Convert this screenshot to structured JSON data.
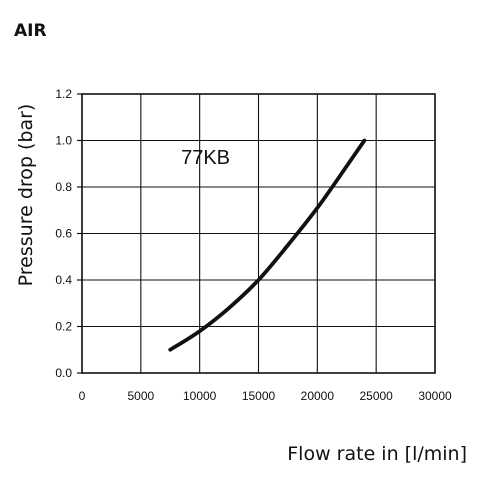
{
  "header": {
    "title": "AIR"
  },
  "chart_data": {
    "type": "line",
    "title": "",
    "xlabel": "Flow rate in [l/min]",
    "ylabel": "Pressure drop (bar)",
    "xlim": [
      0,
      30000
    ],
    "ylim": [
      0,
      1.2
    ],
    "x_ticks": [
      "0",
      "5000",
      "10000",
      "15000",
      "20000",
      "25000",
      "30000"
    ],
    "y_ticks": [
      "0.0",
      "0.2",
      "0.4",
      "0.6",
      "0.8",
      "1.0",
      "1.2"
    ],
    "grid": true,
    "series": [
      {
        "name": "77KB",
        "color": "#111111",
        "x": [
          7500,
          10000,
          12500,
          15000,
          17500,
          20000,
          22500,
          24000
        ],
        "y": [
          0.1,
          0.18,
          0.28,
          0.4,
          0.55,
          0.71,
          0.89,
          1.0
        ]
      }
    ],
    "annotations": [
      {
        "text": "77KB",
        "x": 10500,
        "y": 0.9
      }
    ]
  }
}
